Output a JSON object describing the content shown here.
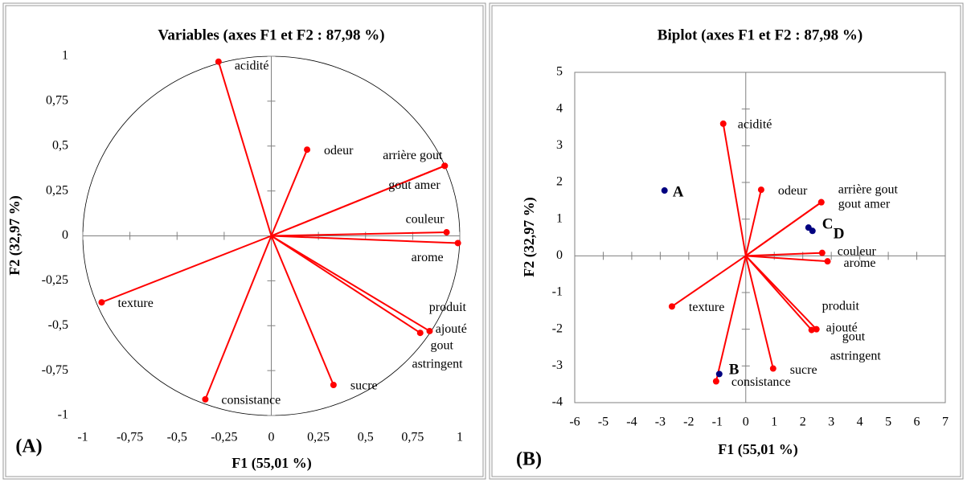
{
  "chart_data": [
    {
      "type": "scatter",
      "title": "Variables (axes F1 et F2 : 87,98 %)",
      "xlabel": "F1 (55,01 %)",
      "ylabel": "F2 (32,97 %)",
      "panel_label": "(A)",
      "xlim": [
        -1,
        1
      ],
      "ylim": [
        -1,
        1
      ],
      "xticks": [
        -1,
        {
          "value": -0.75,
          "label": "-0,75"
        },
        {
          "value": -0.5,
          "label": "-0,5"
        },
        {
          "value": -0.25,
          "label": "-0,25"
        },
        0,
        {
          "value": 0.25,
          "label": "0,25"
        },
        {
          "value": 0.5,
          "label": "0,5"
        },
        {
          "value": 0.75,
          "label": "0,75"
        },
        1
      ],
      "yticks": [
        -1,
        {
          "value": -0.75,
          "label": "-0,75"
        },
        {
          "value": -0.5,
          "label": "-0,5"
        },
        {
          "value": -0.25,
          "label": "-0,25"
        },
        0,
        {
          "value": 0.25,
          "label": "0,25"
        },
        {
          "value": 0.5,
          "label": "0,5"
        },
        {
          "value": 0.75,
          "label": "0,75"
        },
        1
      ],
      "unit_circle": true,
      "frame": false,
      "series": [
        {
          "color": "#ff0000",
          "vectors_from_origin": true,
          "points": [
            {
              "label": [
                "acidité"
              ],
              "x": -0.28,
              "y": 0.97
            },
            {
              "label": [
                "odeur"
              ],
              "x": 0.19,
              "y": 0.48
            },
            {
              "label": [
                "arrière gout"
              ],
              "x": 0.92,
              "y": 0.39
            },
            {
              "label": [
                "gout amer"
              ],
              "x": 0.92,
              "y": 0.39
            },
            {
              "label": [
                "couleur"
              ],
              "x": 0.93,
              "y": 0.02
            },
            {
              "label": [
                "arome"
              ],
              "x": 0.99,
              "y": -0.04
            },
            {
              "label": [
                "texture"
              ],
              "x": -0.9,
              "y": -0.37
            },
            {
              "label": [
                "produit",
                "ajouté"
              ],
              "x": 0.79,
              "y": -0.54
            },
            {
              "label": [
                "gout",
                "astringent"
              ],
              "x": 0.84,
              "y": -0.53
            },
            {
              "label": [
                "sucre"
              ],
              "x": 0.33,
              "y": -0.83
            },
            {
              "label": [
                "consistance"
              ],
              "x": -0.35,
              "y": -0.91
            }
          ]
        }
      ]
    },
    {
      "type": "scatter",
      "title": "Biplot (axes F1 et F2 : 87,98 %)",
      "xlabel": "F1 (55,01 %)",
      "ylabel": "F2 (32,97 %)",
      "panel_label": "(B)",
      "xlim": [
        -6,
        7
      ],
      "ylim": [
        -4,
        5
      ],
      "xticks": [
        -6,
        -5,
        -4,
        -3,
        -2,
        -1,
        0,
        1,
        2,
        3,
        4,
        5,
        6,
        7
      ],
      "yticks": [
        -4,
        -3,
        -2,
        -1,
        0,
        1,
        2,
        3,
        4,
        5
      ],
      "unit_circle": false,
      "frame": true,
      "series": [
        {
          "color": "#ff0000",
          "vectors_from_origin": true,
          "points": [
            {
              "label": [
                "acidité"
              ],
              "x": -0.79,
              "y": 3.6
            },
            {
              "label": [
                "odeur"
              ],
              "x": 0.54,
              "y": 1.8
            },
            {
              "label": [
                "arrière gout"
              ],
              "x": 2.65,
              "y": 1.46
            },
            {
              "label": [
                "gout amer"
              ],
              "x": 2.65,
              "y": 1.46
            },
            {
              "label": [
                "couleur"
              ],
              "x": 2.68,
              "y": 0.08
            },
            {
              "label": [
                "arome"
              ],
              "x": 2.87,
              "y": -0.15
            },
            {
              "label": [
                "texture"
              ],
              "x": -2.59,
              "y": -1.38
            },
            {
              "label": [
                "produit",
                "ajouté"
              ],
              "x": 2.31,
              "y": -2.02
            },
            {
              "label": [
                "gout",
                "astringent"
              ],
              "x": 2.48,
              "y": -2.0
            },
            {
              "label": [
                "sucre"
              ],
              "x": 0.96,
              "y": -3.07
            },
            {
              "label": [
                "consistance"
              ],
              "x": -1.04,
              "y": -3.42
            }
          ]
        },
        {
          "color": "#000080",
          "vectors_from_origin": false,
          "points": [
            {
              "label": [
                "A"
              ],
              "x": -2.85,
              "y": 1.78
            },
            {
              "label": [
                "B"
              ],
              "x": -0.93,
              "y": -3.22
            },
            {
              "label": [
                "C"
              ],
              "x": 2.2,
              "y": 0.77
            },
            {
              "label": [
                "D"
              ],
              "x": 2.34,
              "y": 0.68
            }
          ]
        }
      ]
    }
  ]
}
